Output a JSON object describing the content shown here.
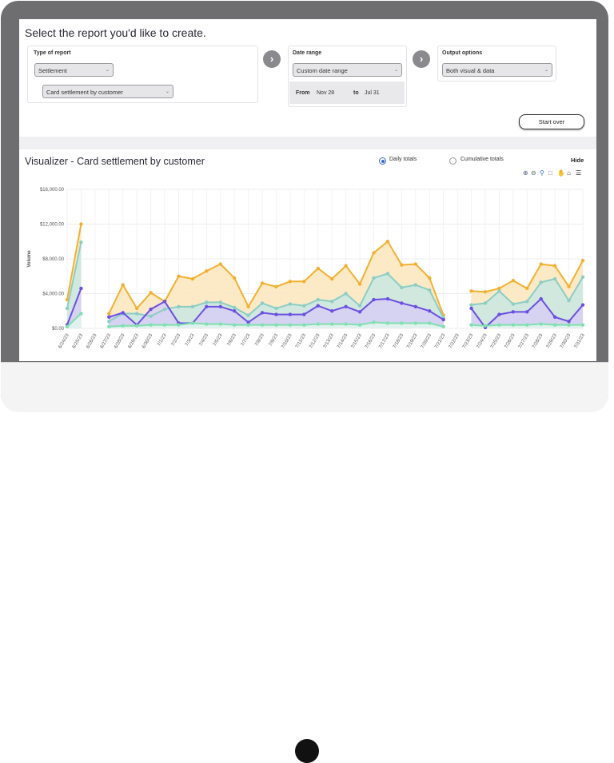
{
  "header": {
    "title": "Select the report you'd like to create."
  },
  "report_type": {
    "label": "Type of report",
    "type_value": "Settlement",
    "subtype_value": "Card settlement by customer"
  },
  "date_range": {
    "label": "Date range",
    "value": "Custom date range",
    "from_label": "From",
    "from_value": "Nov 28",
    "to_label": "to",
    "to_value": "Jul 31"
  },
  "output": {
    "label": "Output options",
    "value": "Both visual & data"
  },
  "start_over": "Start over",
  "visualizer": {
    "title": "Visualizer - Card settlement by customer",
    "daily_label": "Daily totals",
    "cumulative_label": "Cumulative totals",
    "hide_label": "Hide"
  },
  "toolbar_icons": [
    "zoom-in-icon",
    "zoom-out-icon",
    "magnifier-icon",
    "selection-icon",
    "pan-icon",
    "home-icon",
    "menu-icon"
  ],
  "chart_data": {
    "type": "area",
    "ylabel": "Volume",
    "ylim": [
      0,
      16000
    ],
    "yticks": [
      "$16,000.00",
      "$12,000.00",
      "$8,000.00",
      "$4,000.00",
      "$0.00"
    ],
    "categories": [
      "6/24/23",
      "6/25/23",
      "6/26/23",
      "6/27/23",
      "6/28/23",
      "6/29/23",
      "6/30/23",
      "7/1/23",
      "7/2/23",
      "7/3/23",
      "7/4/23",
      "7/5/23",
      "7/6/23",
      "7/7/23",
      "7/8/23",
      "7/9/23",
      "7/10/23",
      "7/11/23",
      "7/12/23",
      "7/13/23",
      "7/14/23",
      "7/15/23",
      "7/16/23",
      "7/17/23",
      "7/18/23",
      "7/19/23",
      "7/20/23",
      "7/21/23",
      "7/22/23",
      "7/23/23",
      "7/24/23",
      "7/25/23",
      "7/26/23",
      "7/27/23",
      "7/28/23",
      "7/29/23",
      "7/30/23",
      "7/31/23"
    ],
    "xlabels": [
      "6/24/23",
      "6/25/23",
      "6/26/23",
      "6/27/23",
      "6/28/23",
      "6/29/23",
      "6/30/23",
      "7/1/23",
      "7/2/23",
      "7/3/23",
      "7/4/23",
      "7/5/23",
      "7/6/23",
      "7/7/23",
      "7/8/23",
      "7/9/23",
      "7/10/23",
      "7/11/23",
      "7/12/23",
      "7/13/23",
      "7/14/23",
      "7/15/23",
      "7/16/23",
      "7/17/23",
      "7/18/23",
      "7/19/23",
      "7/20/23",
      "7/21/23",
      "7/22/23",
      "7/23/23",
      "7/24/23",
      "7/25/23",
      "7/26/23",
      "7/27/23",
      "7/28/23",
      "7/29/23",
      "7/30/23",
      "7/31/23"
    ],
    "series": [
      {
        "color": "#f3b02f",
        "fill": "#fbe6bd",
        "values": [
          3300,
          12000,
          null,
          1700,
          5000,
          2300,
          4100,
          3100,
          6000,
          5700,
          6600,
          7400,
          5800,
          2500,
          5200,
          4800,
          5400,
          5400,
          6900,
          5700,
          7200,
          5100,
          8700,
          10000,
          7300,
          7400,
          5800,
          1500,
          null,
          4300,
          4200,
          4600,
          5500,
          4600,
          7400,
          7200,
          4800,
          7800
        ]
      },
      {
        "color": "#8ccdc4",
        "fill": "#c9e7e3",
        "values": [
          2300,
          9900,
          null,
          800,
          1700,
          1700,
          1400,
          2200,
          2500,
          2500,
          3000,
          3000,
          2400,
          1500,
          2900,
          2300,
          2800,
          2600,
          3300,
          3100,
          4000,
          2600,
          5800,
          6300,
          4700,
          5000,
          4400,
          1200,
          null,
          2700,
          2900,
          4300,
          2800,
          3100,
          5300,
          5700,
          3200,
          5900
        ]
      },
      {
        "color": "#6b4fe0",
        "fill": "#d7cff6",
        "values": [
          400,
          4600,
          null,
          1300,
          1800,
          400,
          2200,
          3100,
          600,
          600,
          2500,
          2500,
          2000,
          700,
          1800,
          1600,
          1600,
          1600,
          2600,
          2000,
          2500,
          1900,
          3300,
          3400,
          2900,
          2500,
          2000,
          1000,
          null,
          2300,
          100,
          1600,
          1900,
          1900,
          3400,
          1300,
          800,
          2700
        ]
      },
      {
        "color": "#7fe0b0",
        "fill": "#e3f6ec",
        "values": [
          200,
          1700,
          null,
          200,
          300,
          300,
          400,
          400,
          400,
          600,
          500,
          500,
          400,
          400,
          400,
          400,
          400,
          400,
          500,
          500,
          500,
          400,
          700,
          600,
          600,
          600,
          600,
          200,
          null,
          400,
          300,
          400,
          400,
          400,
          500,
          400,
          400,
          400
        ]
      }
    ]
  }
}
